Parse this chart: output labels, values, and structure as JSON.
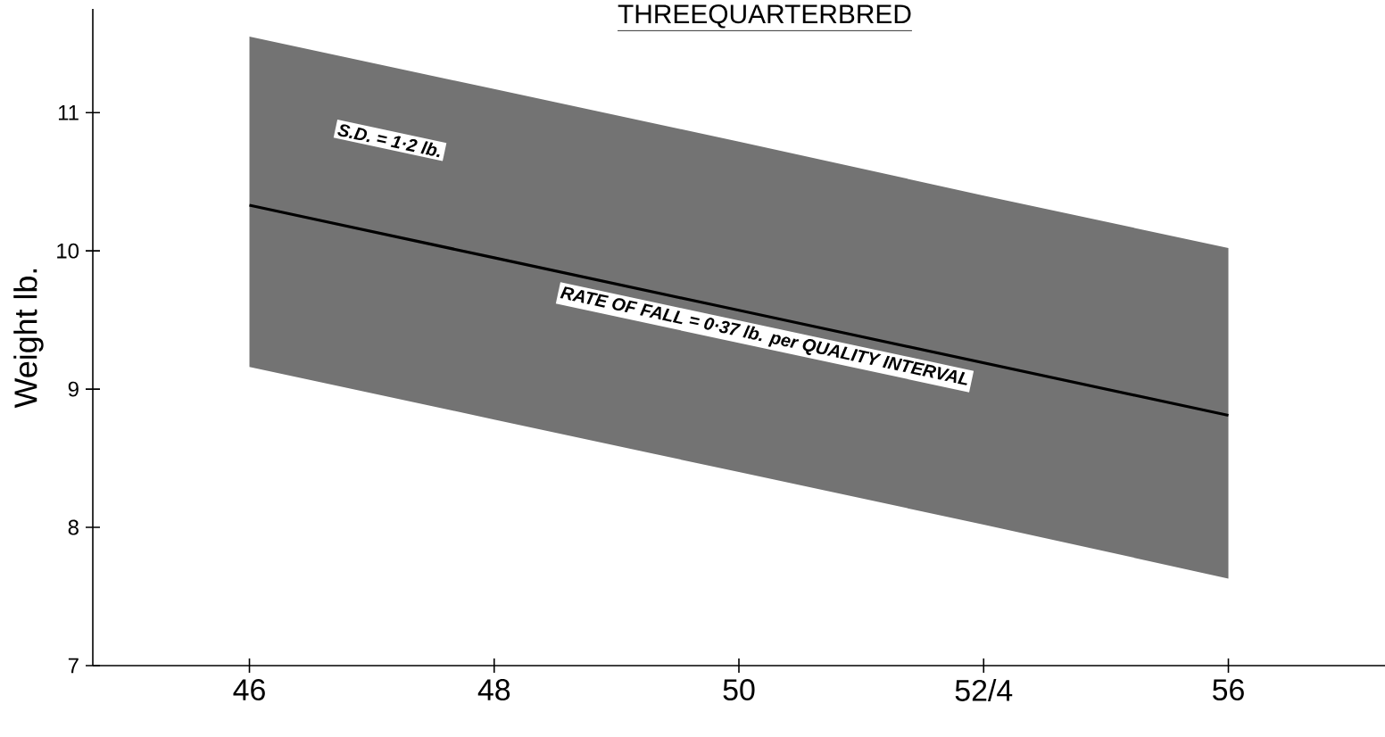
{
  "chart_data": {
    "type": "line",
    "title": "THREEQUARTERBRED",
    "ylabel": "Weight lb.",
    "categories": [
      "46",
      "48",
      "50",
      "52/4",
      "56"
    ],
    "ylim": [
      7,
      11.75
    ],
    "yticks": [
      7,
      8,
      9,
      10,
      11
    ],
    "series": [
      {
        "color": "#000000",
        "values": [
          10.33,
          9.95,
          9.57,
          9.19,
          8.81
        ],
        "lower": [
          9.16,
          8.78,
          8.4,
          8.02,
          7.63
        ],
        "upper": [
          11.55,
          11.17,
          10.79,
          10.4,
          10.02
        ],
        "line_style": "solid"
      }
    ],
    "annotations": [
      "S.D. = 1·2 lb.",
      "RATE OF FALL = 0·37 lb. per QUALITY INTERVAL"
    ],
    "grid": false,
    "marker": "none"
  }
}
